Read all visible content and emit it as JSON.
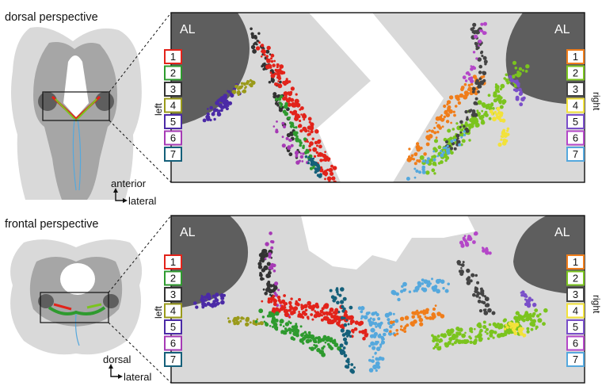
{
  "panels": [
    {
      "title": "dorsal perspective",
      "al_left": "AL",
      "al_right": "AL",
      "side_left": "left",
      "side_right": "right",
      "axis_vertical": "anterior",
      "axis_horizontal": "lateral",
      "legend_left": [
        "1",
        "2",
        "3",
        "4",
        "5",
        "6",
        "7"
      ],
      "legend_right": [
        "1",
        "2",
        "3",
        "4",
        "5",
        "6",
        "7"
      ]
    },
    {
      "title": "frontal perspective",
      "al_left": "AL",
      "al_right": "AL",
      "side_left": "left",
      "side_right": "right",
      "axis_vertical": "dorsal",
      "axis_horizontal": "lateral",
      "legend_left": [
        "1",
        "2",
        "3",
        "4",
        "5",
        "6",
        "7"
      ],
      "legend_right": [
        "1",
        "2",
        "3",
        "4",
        "5",
        "6",
        "7"
      ]
    }
  ],
  "colors": {
    "left": [
      "#e2231a",
      "#2e9a2e",
      "#333333",
      "#9a9a1a",
      "#4b2aa6",
      "#a63ab5",
      "#15607a"
    ],
    "right": [
      "#f07d1a",
      "#7bc41e",
      "#444444",
      "#f2e23a",
      "#7a4fc9",
      "#b447c8",
      "#55a8dd"
    ],
    "brain_outer": "#d9d9d9",
    "brain_inner": "#a6a6a6",
    "antennal_lobe": "#5e5e5e"
  }
}
